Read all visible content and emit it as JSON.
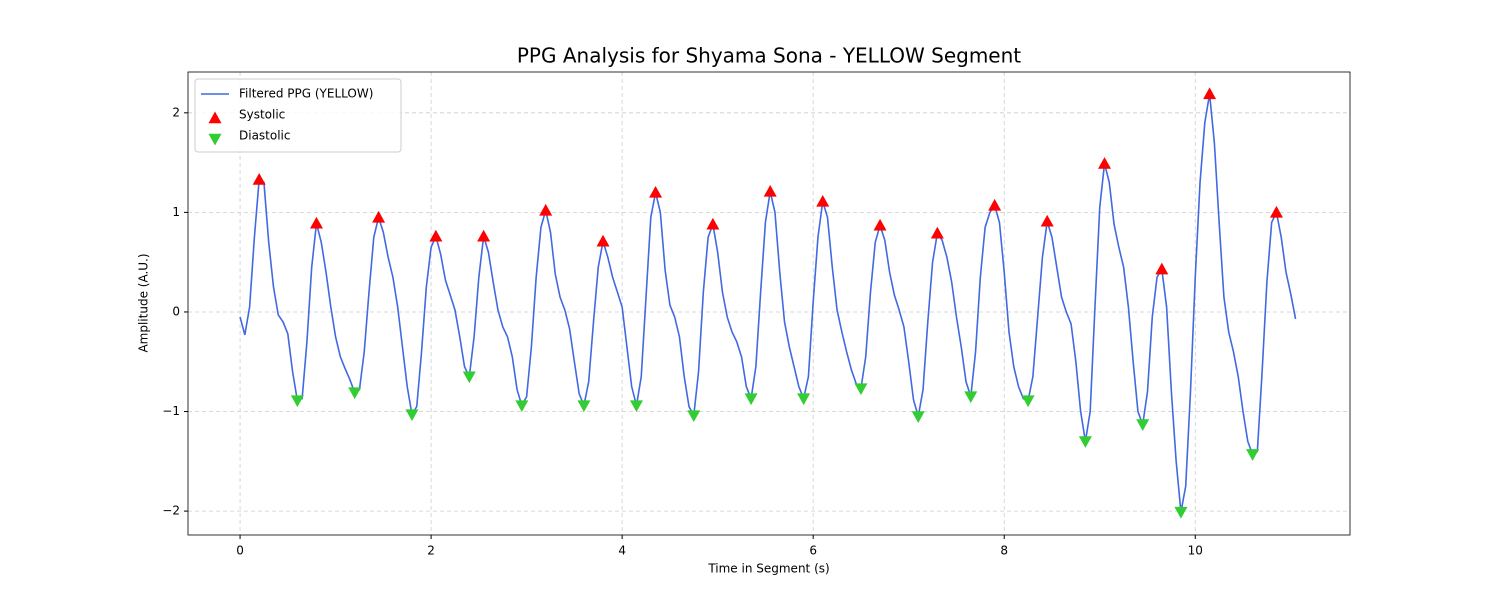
{
  "chart_data": {
    "type": "line",
    "title": "PPG Analysis for Shyama Sona - YELLOW Segment",
    "xlabel": "Time in Segment (s)",
    "ylabel": "Amplitude (A.U.)",
    "xlim": [
      -0.545,
      11.62
    ],
    "ylim": [
      -2.24,
      2.41
    ],
    "xticks": [
      0,
      2,
      4,
      6,
      8,
      10
    ],
    "yticks": [
      {
        "value": -2,
        "label": "−2"
      },
      {
        "value": -1,
        "label": "−1"
      },
      0,
      1,
      2
    ],
    "grid": true,
    "legend": "upper left",
    "series": [
      {
        "name": "Filtered PPG (YELLOW)",
        "type": "line",
        "color": "#4169e1",
        "x": [
          0,
          0.05,
          0.1,
          0.15,
          0.2,
          0.25,
          0.3,
          0.35,
          0.4,
          0.45,
          0.5,
          0.55,
          0.6,
          0.65,
          0.7,
          0.75,
          0.8,
          0.85,
          0.9,
          0.95,
          1,
          1.05,
          1.1,
          1.15,
          1.2,
          1.25,
          1.3,
          1.35,
          1.4,
          1.45,
          1.5,
          1.55,
          1.6,
          1.65,
          1.7,
          1.75,
          1.8,
          1.85,
          1.9,
          1.95,
          2,
          2.05,
          2.1,
          2.15,
          2.2,
          2.25,
          2.3,
          2.35,
          2.4,
          2.45,
          2.5,
          2.55,
          2.6,
          2.65,
          2.7,
          2.75,
          2.8,
          2.85,
          2.9,
          2.95,
          3,
          3.05,
          3.1,
          3.15,
          3.2,
          3.25,
          3.3,
          3.35,
          3.4,
          3.45,
          3.5,
          3.55,
          3.6,
          3.65,
          3.7,
          3.75,
          3.8,
          3.85,
          3.9,
          3.95,
          4,
          4.05,
          4.1,
          4.15,
          4.2,
          4.25,
          4.3,
          4.35,
          4.4,
          4.45,
          4.5,
          4.55,
          4.6,
          4.65,
          4.7,
          4.75,
          4.8,
          4.85,
          4.9,
          4.95,
          5,
          5.05,
          5.1,
          5.15,
          5.2,
          5.25,
          5.3,
          5.35,
          5.4,
          5.45,
          5.5,
          5.55,
          5.6,
          5.65,
          5.7,
          5.75,
          5.8,
          5.85,
          5.9,
          5.95,
          6,
          6.05,
          6.1,
          6.15,
          6.2,
          6.25,
          6.3,
          6.35,
          6.4,
          6.45,
          6.5,
          6.55,
          6.6,
          6.65,
          6.7,
          6.75,
          6.8,
          6.85,
          6.9,
          6.95,
          7,
          7.05,
          7.1,
          7.15,
          7.2,
          7.25,
          7.3,
          7.35,
          7.4,
          7.45,
          7.5,
          7.55,
          7.6,
          7.65,
          7.7,
          7.75,
          7.8,
          7.85,
          7.9,
          7.95,
          8,
          8.05,
          8.1,
          8.15,
          8.2,
          8.25,
          8.3,
          8.35,
          8.4,
          8.45,
          8.5,
          8.55,
          8.6,
          8.65,
          8.7,
          8.75,
          8.8,
          8.85,
          8.9,
          8.95,
          9,
          9.05,
          9.1,
          9.15,
          9.2,
          9.25,
          9.3,
          9.35,
          9.4,
          9.45,
          9.5,
          9.55,
          9.6,
          9.65,
          9.7,
          9.75,
          9.8,
          9.85,
          9.9,
          9.95,
          10,
          10.05,
          10.1,
          10.15,
          10.2,
          10.25,
          10.3,
          10.35,
          10.4,
          10.45,
          10.5,
          10.55,
          10.6,
          10.65,
          10.7,
          10.75,
          10.8,
          10.85,
          10.9,
          10.95,
          11,
          11.05
        ],
        "values": [
          -0.05,
          -0.23,
          0.05,
          0.75,
          1.33,
          1.3,
          0.7,
          0.25,
          -0.03,
          -0.1,
          -0.22,
          -0.6,
          -0.89,
          -0.87,
          -0.3,
          0.45,
          0.89,
          0.7,
          0.4,
          0.05,
          -0.25,
          -0.45,
          -0.57,
          -0.68,
          -0.81,
          -0.78,
          -0.4,
          0.2,
          0.75,
          0.95,
          0.8,
          0.55,
          0.35,
          0.05,
          -0.35,
          -0.75,
          -1.03,
          -0.95,
          -0.4,
          0.25,
          0.65,
          0.76,
          0.58,
          0.32,
          0.17,
          0.02,
          -0.25,
          -0.55,
          -0.65,
          -0.25,
          0.35,
          0.76,
          0.6,
          0.3,
          0.02,
          -0.15,
          -0.25,
          -0.45,
          -0.78,
          -0.94,
          -0.85,
          -0.35,
          0.35,
          0.85,
          1.02,
          0.8,
          0.38,
          0.15,
          0.02,
          -0.17,
          -0.5,
          -0.82,
          -0.94,
          -0.7,
          -0.1,
          0.45,
          0.71,
          0.55,
          0.35,
          0.2,
          0.05,
          -0.35,
          -0.75,
          -0.94,
          -0.65,
          0.15,
          0.95,
          1.2,
          1.0,
          0.42,
          0.07,
          -0.05,
          -0.25,
          -0.65,
          -0.95,
          -1.04,
          -0.6,
          0.2,
          0.75,
          0.88,
          0.6,
          0.2,
          -0.05,
          -0.2,
          -0.3,
          -0.45,
          -0.75,
          -0.87,
          -0.55,
          0.2,
          0.9,
          1.21,
          1.0,
          0.4,
          -0.1,
          -0.35,
          -0.55,
          -0.75,
          -0.87,
          -0.65,
          0.1,
          0.75,
          1.11,
          0.95,
          0.45,
          0.02,
          -0.2,
          -0.4,
          -0.58,
          -0.72,
          -0.77,
          -0.45,
          0.2,
          0.7,
          0.87,
          0.72,
          0.4,
          0.17,
          0.02,
          -0.15,
          -0.5,
          -0.88,
          -1.05,
          -0.78,
          -0.1,
          0.5,
          0.79,
          0.72,
          0.55,
          0.3,
          -0.05,
          -0.35,
          -0.7,
          -0.85,
          -0.4,
          0.35,
          0.85,
          1.0,
          1.07,
          0.9,
          0.4,
          -0.2,
          -0.55,
          -0.75,
          -0.87,
          -0.89,
          -0.65,
          -0.05,
          0.55,
          0.91,
          0.75,
          0.45,
          0.15,
          0,
          -0.12,
          -0.5,
          -1.0,
          -1.3,
          -1.0,
          0.05,
          1.05,
          1.49,
          1.3,
          0.88,
          0.65,
          0.45,
          0.05,
          -0.5,
          -1.0,
          -1.13,
          -0.8,
          -0.05,
          0.35,
          0.43,
          0.05,
          -0.8,
          -1.5,
          -2.01,
          -1.75,
          -0.8,
          0.35,
          1.3,
          1.9,
          2.19,
          1.7,
          0.9,
          0.15,
          -0.2,
          -0.4,
          -0.65,
          -1.0,
          -1.3,
          -1.43,
          -1.4,
          -0.6,
          0.3,
          0.9,
          1.0,
          0.75,
          0.4,
          0.18,
          -0.07
        ]
      },
      {
        "name": "Systolic",
        "type": "scatter",
        "marker": "triangle-up",
        "color": "#ff0000",
        "x": [
          0.2,
          0.8,
          1.45,
          2.05,
          2.55,
          3.2,
          3.8,
          4.35,
          4.95,
          5.55,
          6.1,
          6.7,
          7.3,
          7.9,
          8.45,
          9.05,
          9.65,
          10.15,
          10.85
        ],
        "values": [
          1.33,
          0.89,
          0.95,
          0.76,
          0.76,
          1.02,
          0.71,
          1.2,
          0.88,
          1.21,
          1.11,
          0.87,
          0.79,
          1.07,
          0.91,
          1.49,
          0.43,
          2.19,
          1.0
        ]
      },
      {
        "name": "Diastolic",
        "type": "scatter",
        "marker": "triangle-down",
        "color": "#32cd32",
        "x": [
          0.6,
          1.2,
          1.8,
          2.4,
          2.95,
          3.6,
          4.15,
          4.75,
          5.35,
          5.9,
          6.5,
          7.1,
          7.65,
          8.25,
          8.85,
          9.45,
          9.85,
          10.6
        ],
        "values": [
          -0.89,
          -0.81,
          -1.03,
          -0.65,
          -0.94,
          -0.94,
          -0.94,
          -1.04,
          -0.87,
          -0.87,
          -0.77,
          -1.05,
          -0.85,
          -0.89,
          -1.3,
          -1.13,
          -2.01,
          -1.43
        ]
      }
    ]
  }
}
